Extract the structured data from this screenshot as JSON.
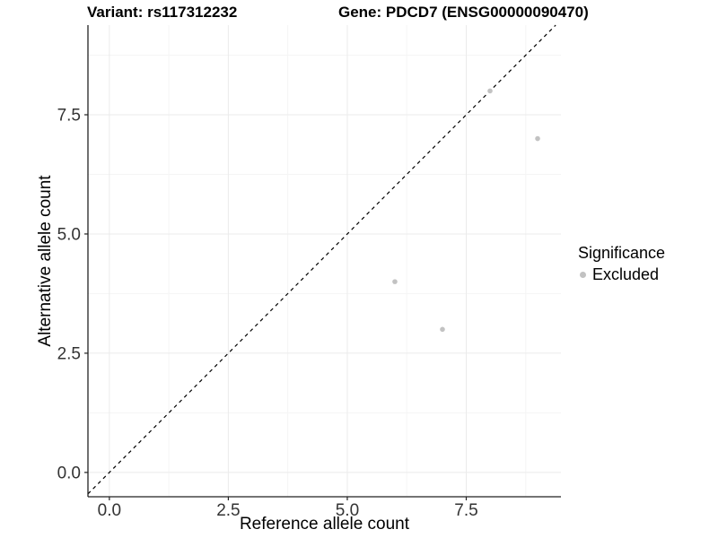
{
  "titles": {
    "variant": "Variant: rs117312232",
    "gene": "Gene: PDCD7 (ENSG00000090470)"
  },
  "chart_data": {
    "type": "scatter",
    "xlabel": "Reference allele count",
    "ylabel": "Alternative allele count",
    "x_tick_labels": [
      "0.0",
      "2.5",
      "5.0",
      "7.5"
    ],
    "y_tick_labels": [
      "0.0",
      "2.5",
      "5.0",
      "7.5"
    ],
    "x_tick_values": [
      0,
      2.5,
      5,
      7.5
    ],
    "y_tick_values": [
      0,
      2.5,
      5,
      7.5
    ],
    "xlim": [
      -0.45,
      9.49
    ],
    "ylim": [
      -0.51,
      9.38
    ],
    "grid": true,
    "series": [
      {
        "name": "Excluded",
        "color": "#c2c2c2",
        "points": [
          [
            6,
            4
          ],
          [
            7,
            3
          ],
          [
            8,
            8
          ],
          [
            9,
            7
          ]
        ]
      }
    ],
    "identity_line": {
      "style": "dashed",
      "color": "#000000",
      "slope": 1,
      "intercept": 0
    },
    "legend": {
      "title": "Significance",
      "position": "right",
      "entries": [
        {
          "label": "Excluded",
          "color": "#c2c2c2"
        }
      ]
    }
  },
  "colors": {
    "grid_major": "#ebebeb",
    "grid_minor": "#f5f5f5",
    "axis": "#222222",
    "tick_text": "#333333",
    "point": "#c2c2c2"
  }
}
